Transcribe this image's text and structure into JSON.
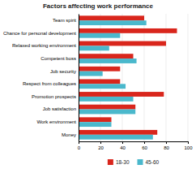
{
  "chart_data": {
    "type": "bar",
    "orientation": "horizontal",
    "title": "Factors affecting work performance",
    "categories": [
      "Team spirit",
      "Chance for personal development",
      "Relaxed working environment",
      "Competent boss",
      "Job security",
      "Respect from colleagues",
      "Promotion prospects",
      "Job satisfaction",
      "Work environment",
      "Money"
    ],
    "series": [
      {
        "name": "18-30",
        "color": "#d9261c",
        "values": [
          60,
          90,
          80,
          50,
          38,
          38,
          78,
          52,
          30,
          72
        ]
      },
      {
        "name": "45-60",
        "color": "#4ab8cc",
        "values": [
          62,
          38,
          28,
          53,
          22,
          43,
          50,
          52,
          30,
          68
        ]
      }
    ],
    "xlim": [
      0,
      100
    ],
    "xticks": [
      0,
      20,
      40,
      60,
      80,
      100
    ],
    "grid": true,
    "legend": "bottom"
  }
}
